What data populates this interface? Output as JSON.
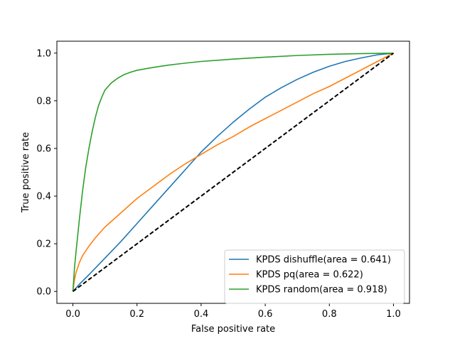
{
  "chart_data": {
    "type": "line",
    "title": "",
    "xlabel": "False positive rate",
    "ylabel": "True positive rate",
    "xlim": [
      -0.05,
      1.05
    ],
    "ylim": [
      -0.05,
      1.05
    ],
    "xticks": [
      "0.0",
      "0.2",
      "0.4",
      "0.6",
      "0.8",
      "1.0"
    ],
    "yticks": [
      "0.0",
      "0.2",
      "0.4",
      "0.6",
      "0.8",
      "1.0"
    ],
    "grid": false,
    "legend_position": "lower-right",
    "series": [
      {
        "name": "KPDS dishuffle(area = 0.641)",
        "color": "#1f77b4",
        "x": [
          0,
          0.02,
          0.05,
          0.1,
          0.15,
          0.2,
          0.25,
          0.3,
          0.35,
          0.4,
          0.45,
          0.5,
          0.55,
          0.6,
          0.65,
          0.7,
          0.75,
          0.8,
          0.85,
          0.9,
          0.95,
          1.0
        ],
        "y": [
          0,
          0.03,
          0.07,
          0.14,
          0.21,
          0.285,
          0.36,
          0.435,
          0.51,
          0.585,
          0.65,
          0.71,
          0.765,
          0.815,
          0.855,
          0.89,
          0.92,
          0.945,
          0.965,
          0.98,
          0.993,
          1.0
        ]
      },
      {
        "name": "KPDS pq(area = 0.622)",
        "color": "#ff7f0e",
        "x": [
          0,
          0.005,
          0.01,
          0.02,
          0.03,
          0.05,
          0.07,
          0.1,
          0.15,
          0.2,
          0.25,
          0.3,
          0.35,
          0.4,
          0.45,
          0.5,
          0.55,
          0.6,
          0.65,
          0.7,
          0.75,
          0.8,
          0.85,
          0.9,
          0.95,
          1.0
        ],
        "y": [
          0,
          0.05,
          0.08,
          0.12,
          0.15,
          0.19,
          0.225,
          0.27,
          0.33,
          0.39,
          0.44,
          0.49,
          0.535,
          0.575,
          0.615,
          0.65,
          0.69,
          0.725,
          0.76,
          0.795,
          0.83,
          0.86,
          0.895,
          0.93,
          0.965,
          1.0
        ]
      },
      {
        "name": "KPDS random(area = 0.918)",
        "color": "#2ca02c",
        "x": [
          0,
          0.005,
          0.01,
          0.02,
          0.03,
          0.04,
          0.05,
          0.06,
          0.07,
          0.08,
          0.09,
          0.1,
          0.12,
          0.14,
          0.16,
          0.18,
          0.2,
          0.25,
          0.3,
          0.35,
          0.4,
          0.5,
          0.6,
          0.7,
          0.8,
          0.9,
          1.0
        ],
        "y": [
          0,
          0.1,
          0.17,
          0.3,
          0.42,
          0.52,
          0.6,
          0.67,
          0.73,
          0.78,
          0.815,
          0.845,
          0.875,
          0.895,
          0.91,
          0.92,
          0.928,
          0.94,
          0.95,
          0.958,
          0.965,
          0.975,
          0.983,
          0.99,
          0.995,
          0.998,
          1.0
        ]
      },
      {
        "name": "",
        "color": "#000000",
        "dashed": true,
        "x": [
          0,
          1
        ],
        "y": [
          0,
          1
        ]
      }
    ]
  }
}
